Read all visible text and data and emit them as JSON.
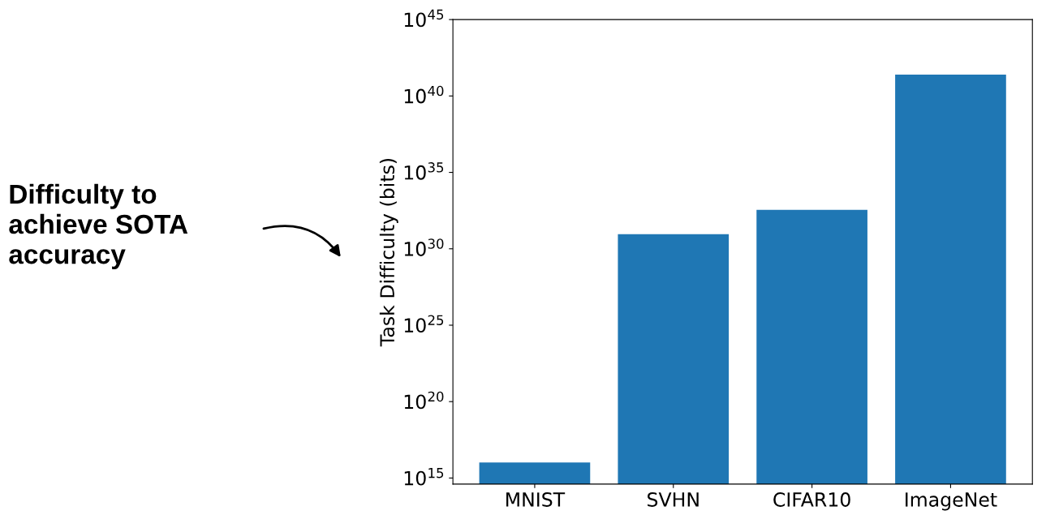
{
  "chart_data": {
    "type": "bar",
    "ylabel": "Task Difficulty (bits)",
    "categories": [
      "MNIST",
      "SVHN",
      "CIFAR10",
      "ImageNet"
    ],
    "values": [
      1e+16,
      9e+30,
      3.5e+32,
      2.5e+41
    ],
    "color": "#1f77b4",
    "log": "y",
    "ylim": [
      400000000000000.0,
      1e+45
    ],
    "yticks": [
      {
        "value": 1000000000000000.0,
        "label": "10$^{15}$"
      },
      {
        "value": 1e+20,
        "label": "10$^{20}$"
      },
      {
        "value": 1e+25,
        "label": "10$^{25}$"
      },
      {
        "value": 1e+30,
        "label": "10$^{30}$"
      },
      {
        "value": 1e+35,
        "label": "10$^{35}$"
      },
      {
        "value": 1e+40,
        "label": "10$^{40}$"
      },
      {
        "value": 1e+45,
        "label": "10$^{45}$"
      }
    ],
    "grid": false,
    "annotations": [
      "Difficulty to\nachieve SOTA\naccuracy"
    ]
  }
}
